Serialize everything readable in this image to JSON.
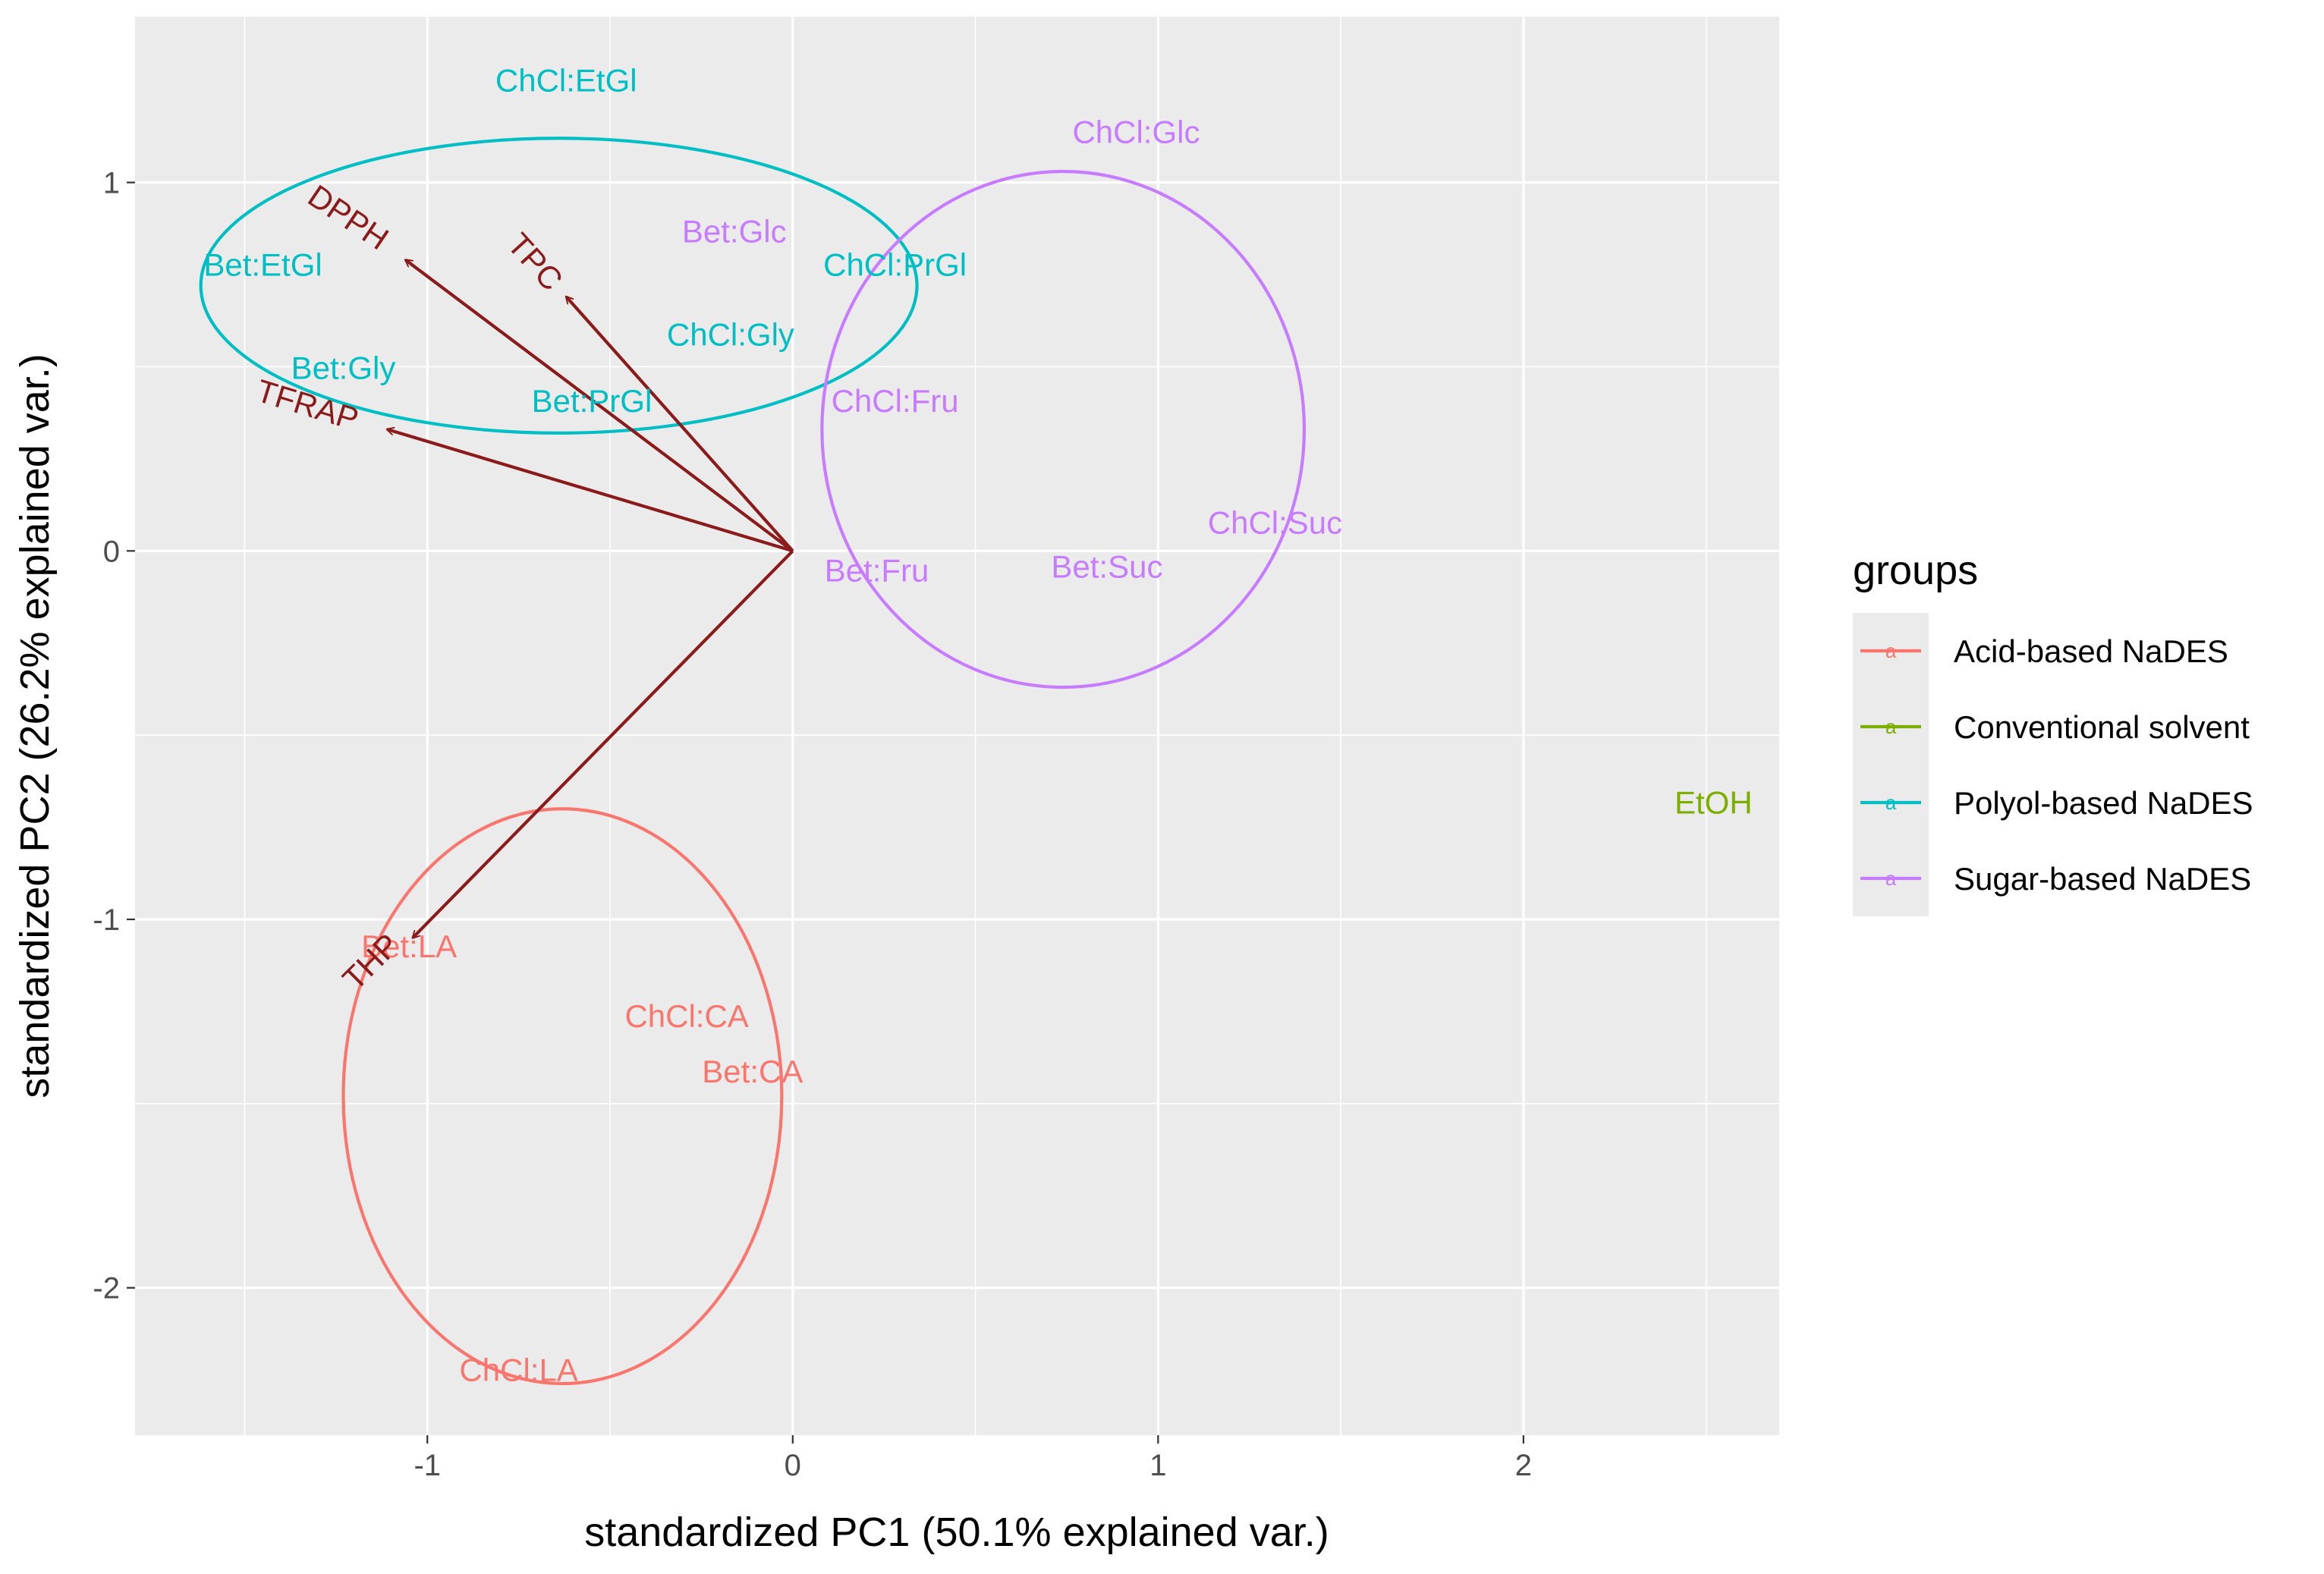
{
  "chart_data": {
    "type": "scatter",
    "subtype": "PCA biplot",
    "xlabel": "standardized PC1 (50.1% explained var.)",
    "ylabel": "standardized PC2 (26.2% explained var.)",
    "xlim": [
      -1.8,
      2.7
    ],
    "ylim": [
      -2.4,
      1.45
    ],
    "x_ticks": [
      -1,
      0,
      1,
      2
    ],
    "y_ticks": [
      -2,
      -1,
      0,
      1
    ],
    "x_tick_labels": [
      "-1",
      "0",
      "1",
      "2"
    ],
    "y_tick_labels": [
      "-2",
      "-1",
      "0",
      "1"
    ],
    "legend": {
      "title": "groups",
      "key_glyph": "a",
      "entries": [
        {
          "name": "Acid-based NaDES",
          "color": "#F8766D"
        },
        {
          "name": "Conventional solvent",
          "color": "#7CAE00"
        },
        {
          "name": "Polyol-based NaDES",
          "color": "#00BFC4"
        },
        {
          "name": "Sugar-based NaDES",
          "color": "#C77CFF"
        }
      ]
    },
    "points": [
      {
        "label": "ChCl:EtGl",
        "group": 2,
        "x": -0.62,
        "y": 1.27
      },
      {
        "label": "Bet:EtGl",
        "group": 2,
        "x": -1.45,
        "y": 0.77
      },
      {
        "label": "Bet:Gly",
        "group": 2,
        "x": -1.23,
        "y": 0.49
      },
      {
        "label": "ChCl:Gly",
        "group": 2,
        "x": -0.17,
        "y": 0.58
      },
      {
        "label": "Bet:PrGl",
        "group": 2,
        "x": -0.55,
        "y": 0.4
      },
      {
        "label": "ChCl:PrGl",
        "group": 2,
        "x": 0.28,
        "y": 0.77
      },
      {
        "label": "ChCl:Glc",
        "group": 3,
        "x": 0.94,
        "y": 1.13
      },
      {
        "label": "Bet:Glc",
        "group": 3,
        "x": -0.16,
        "y": 0.86
      },
      {
        "label": "ChCl:Fru",
        "group": 3,
        "x": 0.28,
        "y": 0.4
      },
      {
        "label": "ChCl:Suc",
        "group": 3,
        "x": 1.32,
        "y": 0.07
      },
      {
        "label": "Bet:Suc",
        "group": 3,
        "x": 0.86,
        "y": -0.05
      },
      {
        "label": "Bet:Fru",
        "group": 3,
        "x": 0.23,
        "y": -0.06
      },
      {
        "label": "Bet:LA",
        "group": 0,
        "x": -1.05,
        "y": -1.08
      },
      {
        "label": "ChCl:CA",
        "group": 0,
        "x": -0.29,
        "y": -1.27
      },
      {
        "label": "Bet:CA",
        "group": 0,
        "x": -0.11,
        "y": -1.42
      },
      {
        "label": "ChCl:LA",
        "group": 0,
        "x": -0.75,
        "y": -2.23
      },
      {
        "label": "EtOH",
        "group": 1,
        "x": 2.52,
        "y": -0.69
      }
    ],
    "ellipses": [
      {
        "group": 2,
        "cx": -0.64,
        "cy": 0.72,
        "rx": 0.98,
        "ry": 0.4
      },
      {
        "group": 3,
        "cx": 0.74,
        "cy": 0.33,
        "rx": 0.66,
        "ry": 0.7
      },
      {
        "group": 0,
        "cx": -0.63,
        "cy": -1.48,
        "rx": 0.6,
        "ry": 0.78
      }
    ],
    "loadings": [
      {
        "label": "DPPH",
        "x": -1.06,
        "y": 0.79,
        "label_x": -1.22,
        "label_y": 0.9,
        "angle": 34
      },
      {
        "label": "TPC",
        "x": -0.62,
        "y": 0.69,
        "label_x": -0.71,
        "label_y": 0.78,
        "angle": 48
      },
      {
        "label": "TFRAP",
        "x": -1.11,
        "y": 0.33,
        "label_x": -1.33,
        "label_y": 0.39,
        "angle": 17
      },
      {
        "label": "THP",
        "x": -1.04,
        "y": -1.05,
        "label_x": -1.15,
        "label_y": -1.12,
        "angle": -45
      }
    ]
  }
}
